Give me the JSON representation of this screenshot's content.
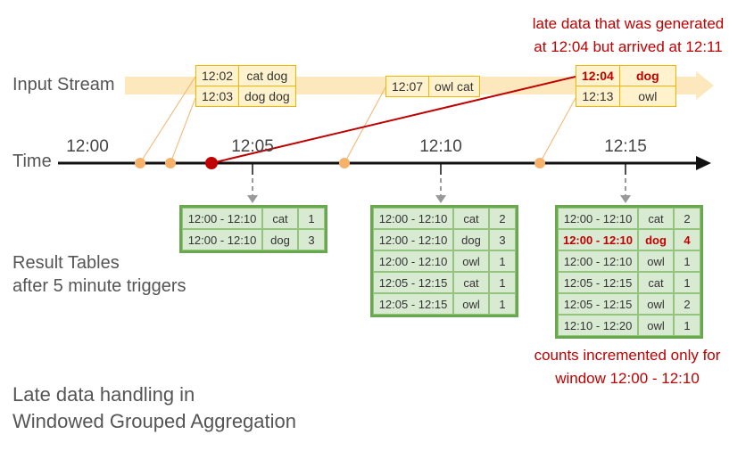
{
  "labels": {
    "input_stream": "Input Stream",
    "time": "Time",
    "result_tables_line1": "Result Tables",
    "result_tables_line2": "after 5 minute triggers",
    "footer_line1": "Late data handling in",
    "footer_line2": "Windowed Grouped Aggregation"
  },
  "time_ticks": [
    "12:00",
    "12:05",
    "12:10",
    "12:15"
  ],
  "late_note": {
    "line1": "late data that was generated",
    "line2": "at 12:04 but arrived at 12:11"
  },
  "count_note": {
    "line1": "counts incremented only for",
    "line2": "window 12:00 - 12:10"
  },
  "input_events": [
    {
      "rows": [
        {
          "time": "12:02",
          "words": "cat dog"
        },
        {
          "time": "12:03",
          "words": "dog dog"
        }
      ]
    },
    {
      "rows": [
        {
          "time": "12:07",
          "words": "owl cat"
        }
      ]
    },
    {
      "rows": [
        {
          "time": "12:04",
          "words": "dog",
          "late": true
        },
        {
          "time": "12:13",
          "words": "owl"
        }
      ]
    }
  ],
  "result_tables": [
    {
      "rows": [
        {
          "window": "12:00 - 12:10",
          "word": "cat",
          "count": "1"
        },
        {
          "window": "12:00 - 12:10",
          "word": "dog",
          "count": "3"
        }
      ]
    },
    {
      "rows": [
        {
          "window": "12:00 - 12:10",
          "word": "cat",
          "count": "2"
        },
        {
          "window": "12:00 - 12:10",
          "word": "dog",
          "count": "3"
        },
        {
          "window": "12:00 - 12:10",
          "word": "owl",
          "count": "1"
        },
        {
          "window": "12:05 - 12:15",
          "word": "cat",
          "count": "1"
        },
        {
          "window": "12:05 - 12:15",
          "word": "owl",
          "count": "1"
        }
      ]
    },
    {
      "rows": [
        {
          "window": "12:00 - 12:10",
          "word": "cat",
          "count": "2"
        },
        {
          "window": "12:00 - 12:10",
          "word": "dog",
          "count": "4",
          "highlight": true
        },
        {
          "window": "12:00 - 12:10",
          "word": "owl",
          "count": "1"
        },
        {
          "window": "12:05 - 12:15",
          "word": "cat",
          "count": "1"
        },
        {
          "window": "12:05 - 12:15",
          "word": "owl",
          "count": "2"
        },
        {
          "window": "12:10 - 12:20",
          "word": "owl",
          "count": "1"
        }
      ]
    }
  ],
  "colors": {
    "stream_band": "#fde7bd",
    "event_border": "#f4b400",
    "event_fill": "#fff2cc",
    "arrival_dot": "#f6b26b",
    "late_line": "#c00000",
    "result_border": "#6aa84f",
    "result_fill": "#d9ead3"
  }
}
